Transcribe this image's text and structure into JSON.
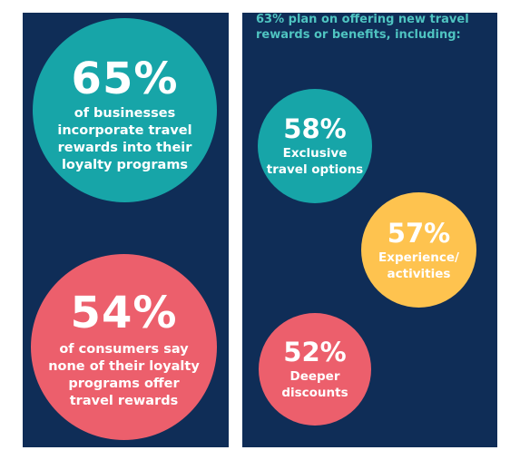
{
  "left_panel": {
    "stat_top": {
      "percent": "65%",
      "text": "of businesses\nincorporate travel\nrewards into their\nloyalty programs"
    },
    "stat_bottom": {
      "percent": "54%",
      "text": "of consumers say\nnone of their loyalty\nprograms offer\ntravel rewards"
    }
  },
  "right_panel": {
    "headline": "63% plan on offering new travel\nrewards or benefits, including:",
    "items": [
      {
        "percent": "58%",
        "text": "Exclusive\ntravel options"
      },
      {
        "percent": "57%",
        "text": "Experience/\nactivities"
      },
      {
        "percent": "52%",
        "text": "Deeper\ndiscounts"
      }
    ]
  },
  "colors": {
    "panel_background": "#0f2d57",
    "teal": "#17a5a8",
    "coral": "#ec5f6c",
    "yellow": "#fec34f",
    "headline_text": "#4fc4c1"
  }
}
